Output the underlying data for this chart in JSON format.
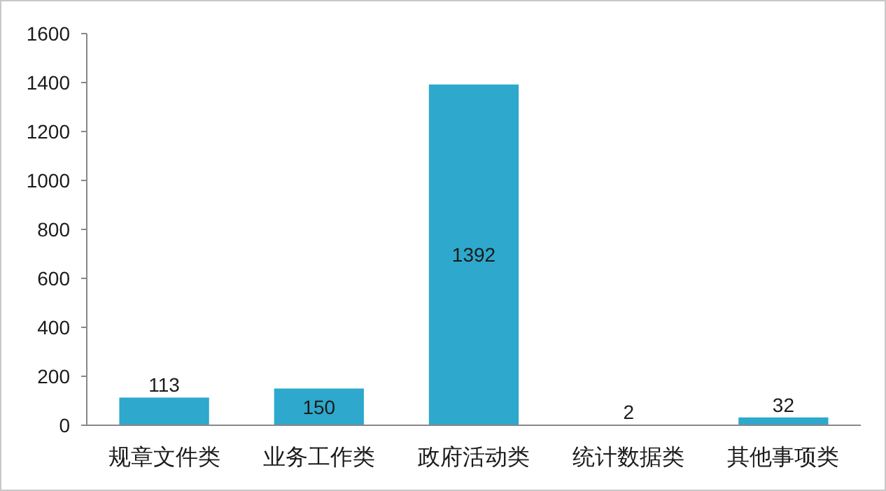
{
  "chart_data": {
    "type": "bar",
    "categories": [
      "规章文件类",
      "业务工作类",
      "政府活动类",
      "统计数据类",
      "其他事项类"
    ],
    "values": [
      113,
      150,
      1392,
      2,
      32
    ],
    "color": "#2ea8cc",
    "ylim": [
      0,
      1600
    ],
    "yticks": [
      0,
      200,
      400,
      600,
      800,
      1000,
      1200,
      1400,
      1600
    ],
    "grid": false,
    "data_labels": true
  }
}
